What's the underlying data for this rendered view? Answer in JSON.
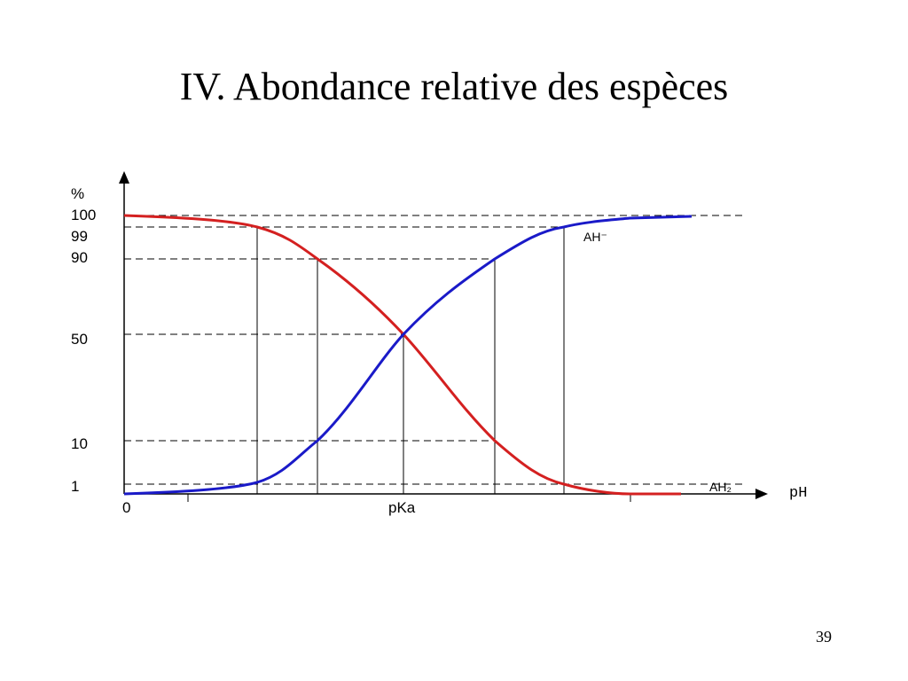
{
  "slide": {
    "title": "IV. Abondance relative des espèces",
    "page_number": "39",
    "diagram": {
      "y_axis_label": "%",
      "y_labels": [
        100,
        99,
        90,
        50,
        10,
        1
      ],
      "x_labels": [
        0,
        "pKa"
      ],
      "x_axis_label": "pH",
      "curve_labels": [
        "AH⁻",
        "AH₂"
      ]
    }
  }
}
